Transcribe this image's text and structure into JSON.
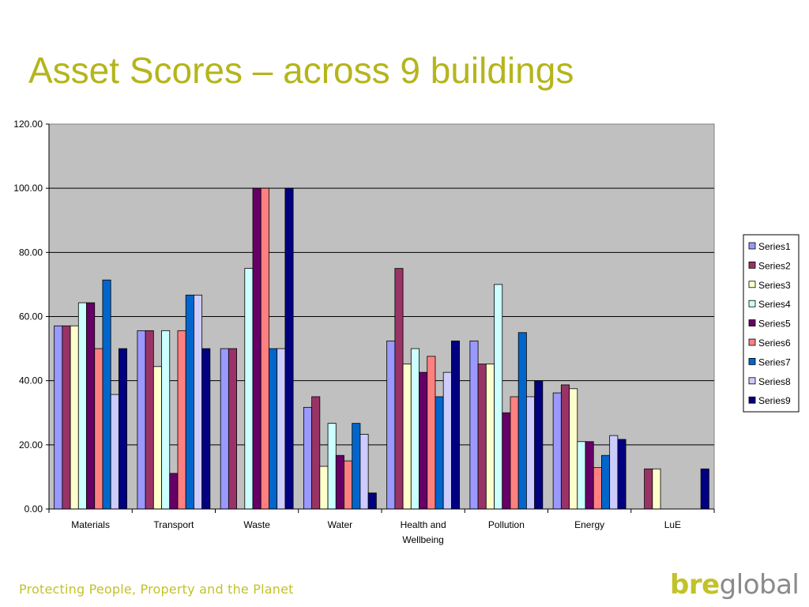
{
  "slide": {
    "title": "Asset Scores – across 9 buildings",
    "footer_tagline": "Protecting People, Property and the Planet",
    "logo": {
      "bre": "bre",
      "global": "global"
    }
  },
  "chart_data": {
    "type": "bar",
    "categories": [
      "Materials",
      "Transport",
      "Waste",
      "Water",
      "Health and Wellbeing",
      "Pollution",
      "Energy",
      "LuE"
    ],
    "ylim": [
      0,
      120
    ],
    "y_ticks": [
      "0.00",
      "20.00",
      "40.00",
      "60.00",
      "80.00",
      "100.00",
      "120.00"
    ],
    "grid": true,
    "legend_position": "right",
    "plot_background": "#c0c0c0",
    "series": [
      {
        "name": "Series1",
        "color": "#9999ff",
        "values": [
          57.1,
          55.6,
          50.0,
          31.7,
          52.4,
          52.4,
          36.2,
          0
        ]
      },
      {
        "name": "Series2",
        "color": "#993366",
        "values": [
          57.1,
          55.6,
          50.0,
          35.0,
          75.0,
          45.2,
          38.7,
          12.5
        ]
      },
      {
        "name": "Series3",
        "color": "#ffffcc",
        "values": [
          57.1,
          44.4,
          0,
          13.3,
          45.2,
          45.2,
          37.5,
          12.5
        ]
      },
      {
        "name": "Series4",
        "color": "#ccffff",
        "values": [
          64.3,
          55.6,
          75.0,
          26.7,
          50.0,
          70.0,
          21.0,
          0
        ]
      },
      {
        "name": "Series5",
        "color": "#660066",
        "values": [
          64.3,
          11.1,
          100.0,
          16.7,
          42.6,
          30.0,
          21.0,
          0
        ]
      },
      {
        "name": "Series6",
        "color": "#ff8080",
        "values": [
          50.0,
          55.6,
          100.0,
          15.0,
          47.6,
          35.0,
          12.9,
          0
        ]
      },
      {
        "name": "Series7",
        "color": "#0066cc",
        "values": [
          71.4,
          66.7,
          50.0,
          26.7,
          35.0,
          55.0,
          16.7,
          0
        ]
      },
      {
        "name": "Series8",
        "color": "#ccccff",
        "values": [
          35.7,
          66.7,
          50.0,
          23.3,
          42.6,
          35.0,
          22.9,
          0
        ]
      },
      {
        "name": "Series9",
        "color": "#000080",
        "values": [
          50.0,
          50.0,
          100.0,
          5.0,
          52.4,
          40.0,
          21.7,
          12.5
        ]
      }
    ]
  }
}
